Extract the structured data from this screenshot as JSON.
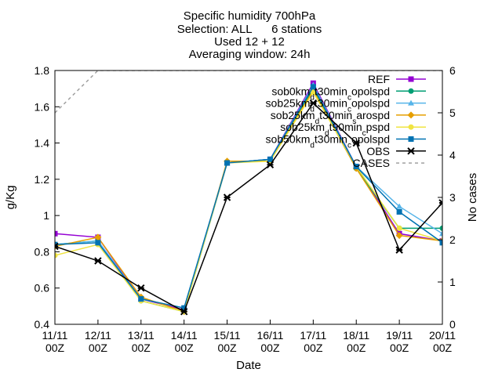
{
  "chart_data": {
    "type": "line",
    "title_lines": [
      "Specific humidity 700hPa",
      "Selection: ALL      6 stations",
      "Used 12 + 12",
      "Averaging window: 24h"
    ],
    "xlabel": "Date",
    "ylabel": "g/Kg",
    "y2label": "No cases",
    "categories": [
      "11/11 00Z",
      "12/11 00Z",
      "13/11 00Z",
      "14/11 00Z",
      "15/11 00Z",
      "16/11 00Z",
      "17/11 00Z",
      "18/11 00Z",
      "19/11 00Z",
      "20/11 00Z"
    ],
    "ylim": [
      0.4,
      1.8
    ],
    "yticks": [
      "0.4",
      "0.6",
      "0.8",
      "1",
      "1.2",
      "1.4",
      "1.6",
      "1.8"
    ],
    "y2lim": [
      0,
      6
    ],
    "y2ticks": [
      "0",
      "1",
      "2",
      "3",
      "4",
      "5",
      "6"
    ],
    "grid": false,
    "legend_position": "top-right",
    "series": [
      {
        "name": "REF",
        "color": "#9400d3",
        "marker": "square",
        "values": [
          0.9,
          0.88,
          0.54,
          0.48,
          1.29,
          1.31,
          1.73,
          1.27,
          0.9,
          0.86
        ]
      },
      {
        "name": "sob0km_dt30min_copolspd",
        "color": "#009e73",
        "marker": "circle",
        "values": [
          0.84,
          0.86,
          0.53,
          0.47,
          1.29,
          1.31,
          1.7,
          1.26,
          0.93,
          0.93
        ]
      },
      {
        "name": "sob25km_dt30min_copolspd",
        "color": "#56b4e9",
        "marker": "triangle",
        "values": [
          0.84,
          0.86,
          0.54,
          0.49,
          1.29,
          1.31,
          1.72,
          1.27,
          1.05,
          0.9
        ]
      },
      {
        "name": "sob25km_dt30min_sarospd",
        "color": "#e69f00",
        "marker": "diamond",
        "values": [
          0.83,
          0.88,
          0.55,
          0.47,
          1.3,
          1.3,
          1.69,
          1.26,
          0.89,
          0.86
        ]
      },
      {
        "name": "sob25km_dt90min_cpspd",
        "color": "#f0e442",
        "marker": "circle",
        "values": [
          0.78,
          0.84,
          0.53,
          0.47,
          1.29,
          1.3,
          1.68,
          1.27,
          0.93,
          0.86
        ]
      },
      {
        "name": "sob50km_dt30min_copolspd",
        "color": "#0072b2",
        "marker": "square",
        "values": [
          0.84,
          0.85,
          0.54,
          0.49,
          1.29,
          1.31,
          1.71,
          1.27,
          1.02,
          0.85
        ]
      },
      {
        "name": "OBS",
        "color": "#000000",
        "marker": "x",
        "values": [
          0.83,
          0.75,
          0.6,
          0.47,
          1.1,
          1.28,
          1.62,
          1.4,
          0.81,
          1.07
        ]
      }
    ],
    "cases": {
      "name": "CASES",
      "color": "#a0a0a0",
      "values": [
        5,
        6,
        6,
        6,
        6,
        6,
        6,
        6,
        6,
        6
      ]
    }
  }
}
